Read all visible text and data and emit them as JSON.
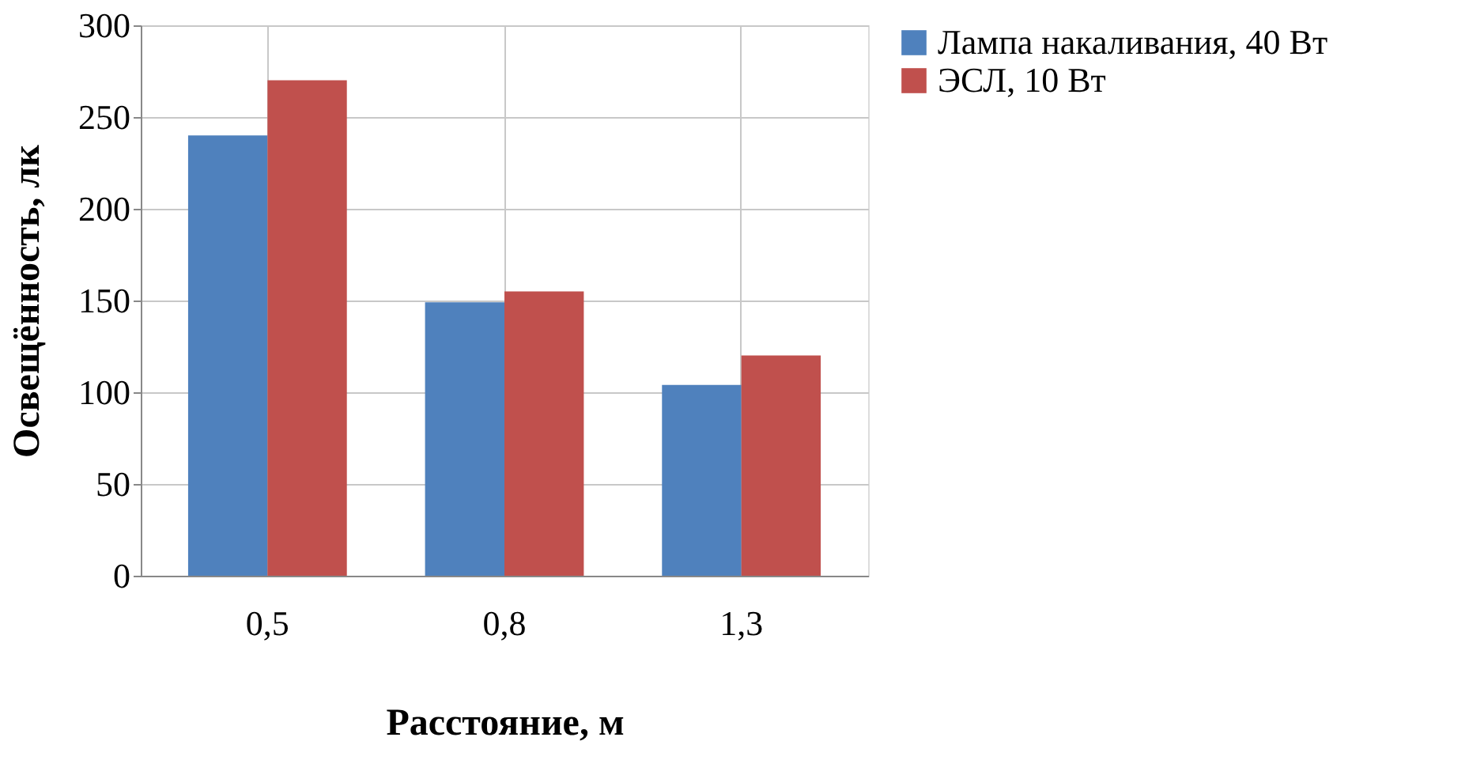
{
  "chart_data": {
    "type": "bar",
    "xlabel": "Расстояние, м",
    "ylabel": "Освещённость, лк",
    "categories": [
      "0,5",
      "0,8",
      "1,3"
    ],
    "series": [
      {
        "name": "Лампа накаливания, 40 Вт",
        "color": "#4f81bd",
        "values": [
          240,
          149,
          104
        ]
      },
      {
        "name": "ЭСЛ, 10 Вт",
        "color": "#c0504d",
        "values": [
          270,
          155,
          120
        ]
      }
    ],
    "ylim": [
      0,
      300
    ],
    "yticks": [
      0,
      50,
      100,
      150,
      200,
      250,
      300
    ],
    "grid": true,
    "legend": "right"
  }
}
